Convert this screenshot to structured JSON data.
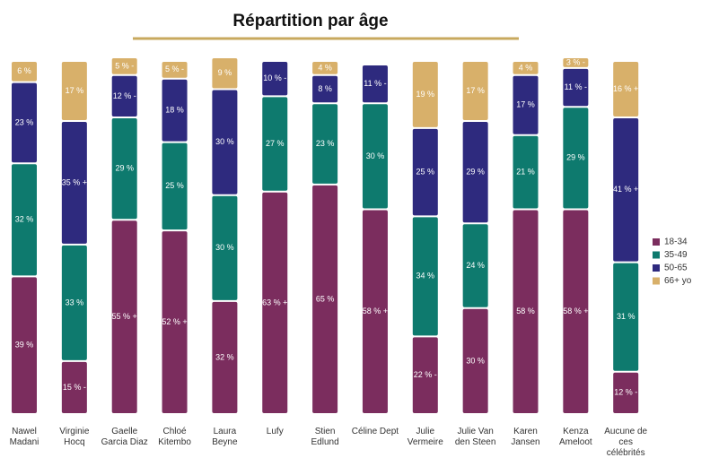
{
  "chart_data": {
    "type": "stacked_bar",
    "title": "Répartition par âge",
    "categories": [
      "Nawel Madani",
      "Virginie Hocq",
      "Gaelle Garcia Diaz",
      "Chloé Kitembo",
      "Laura Beyne",
      "Lufy",
      "Stien Edlund",
      "Céline Dept",
      "Julie Vermeire",
      "Julie Van den Steen",
      "Karen Jansen",
      "Kenza Ameloot",
      "Aucune de ces célébrités"
    ],
    "ylim": [
      0,
      100
    ],
    "legend": "right",
    "series": [
      {
        "name": "18-34",
        "color": "#7b2d5e",
        "values": [
          39,
          15,
          55,
          52,
          32,
          63,
          65,
          58,
          22,
          30,
          58,
          58,
          12
        ],
        "value_labels": [
          "39 %",
          "15 % -",
          "55 % +",
          "52 % +",
          "32 %",
          "63 % +",
          "65 %",
          "58 % +",
          "22 % -",
          "30 %",
          "58 %",
          "58 % +",
          "12 % -"
        ]
      },
      {
        "name": "35-49",
        "color": "#0e7a6e",
        "values": [
          32,
          33,
          29,
          25,
          30,
          27,
          23,
          30,
          34,
          24,
          21,
          29,
          31
        ],
        "value_labels": [
          "32 %",
          "33 %",
          "29 %",
          "25 %",
          "30 %",
          "27 %",
          "23 %",
          "30 %",
          "34 %",
          "24 %",
          "21 %",
          "29 %",
          "31 %"
        ]
      },
      {
        "name": "50-65",
        "color": "#2e2a7e",
        "values": [
          23,
          35,
          12,
          18,
          30,
          10,
          8,
          11,
          25,
          29,
          17,
          11,
          41
        ],
        "value_labels": [
          "23 %",
          "35 % +",
          "12 % -",
          "18 %",
          "30 %",
          "10 % -",
          "8 %",
          "11 % -",
          "25 %",
          "29 %",
          "17 %",
          "11 % -",
          "41 % +"
        ]
      },
      {
        "name": "66+ yo",
        "color": "#d8b06a",
        "values": [
          6,
          17,
          5,
          5,
          9,
          null,
          4,
          null,
          19,
          17,
          4,
          3,
          16
        ],
        "value_labels": [
          "6 %",
          "17 %",
          "5 % -",
          "5 % -",
          "9 %",
          null,
          "4 %",
          null,
          "19 %",
          "17 %",
          "4 %",
          "3 % -",
          "16 % +"
        ]
      }
    ]
  }
}
